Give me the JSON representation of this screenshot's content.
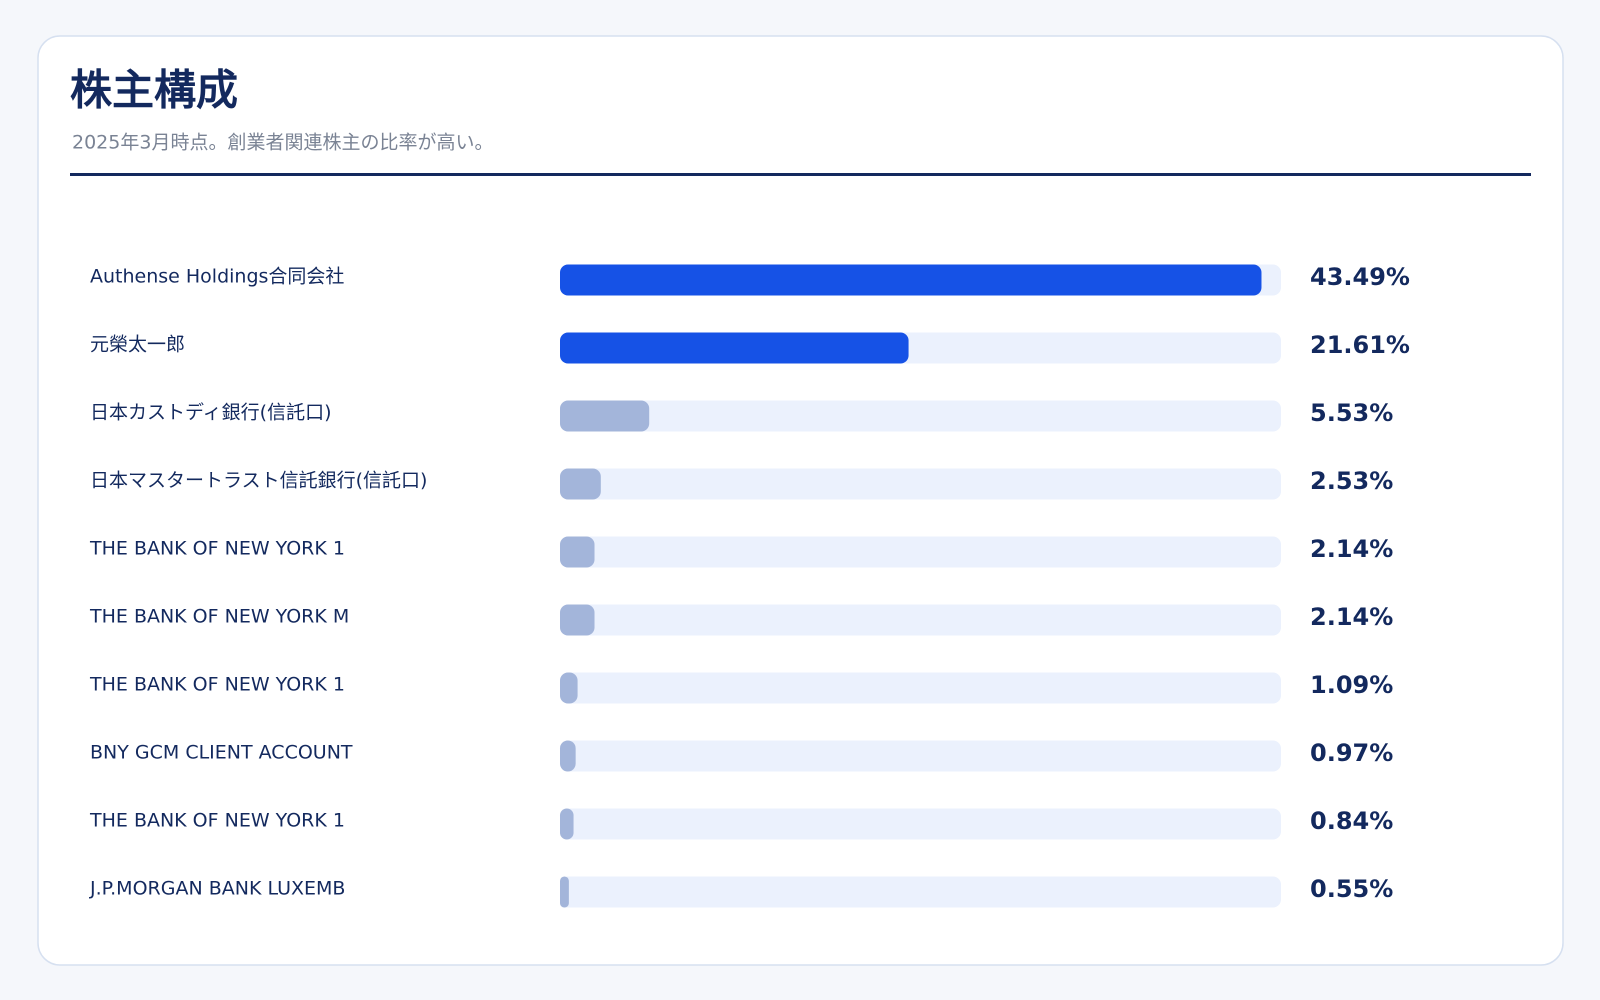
{
  "chart_data": {
    "type": "hbar",
    "title": "株主構成",
    "subtitle": "2025年3月時点。創業者関連株主の比率が高い。",
    "categories": [
      "Authense Holdings合同会社",
      "元榮太一郎",
      "日本カストディ銀行(信託口)",
      "日本マスタートラスト信託銀行(信託口)",
      "THE BANK OF NEW YORK 1",
      "THE BANK OF NEW YORK M",
      "THE BANK OF NEW YORK 1",
      "BNY GCM CLIENT ACCOUNT",
      "THE BANK OF NEW YORK 1",
      "J.P.MORGAN BANK LUXEMB"
    ],
    "values": [
      43.49,
      21.61,
      5.53,
      2.53,
      2.14,
      2.14,
      1.09,
      0.97,
      0.84,
      0.55
    ],
    "value_labels": [
      "43.49%",
      "21.61%",
      "5.53%",
      "2.53%",
      "2.14%",
      "2.14%",
      "1.09%",
      "0.97%",
      "0.84%",
      "0.55%"
    ],
    "colors": [
      "#1652e6",
      "#1652e6",
      "#a3b5da",
      "#a3b5da",
      "#a3b5da",
      "#a3b5da",
      "#a3b5da",
      "#a3b5da",
      "#a3b5da",
      "#a3b5da"
    ],
    "track_color": "#ebf1fd",
    "xlim": [
      0,
      44.7
    ]
  }
}
